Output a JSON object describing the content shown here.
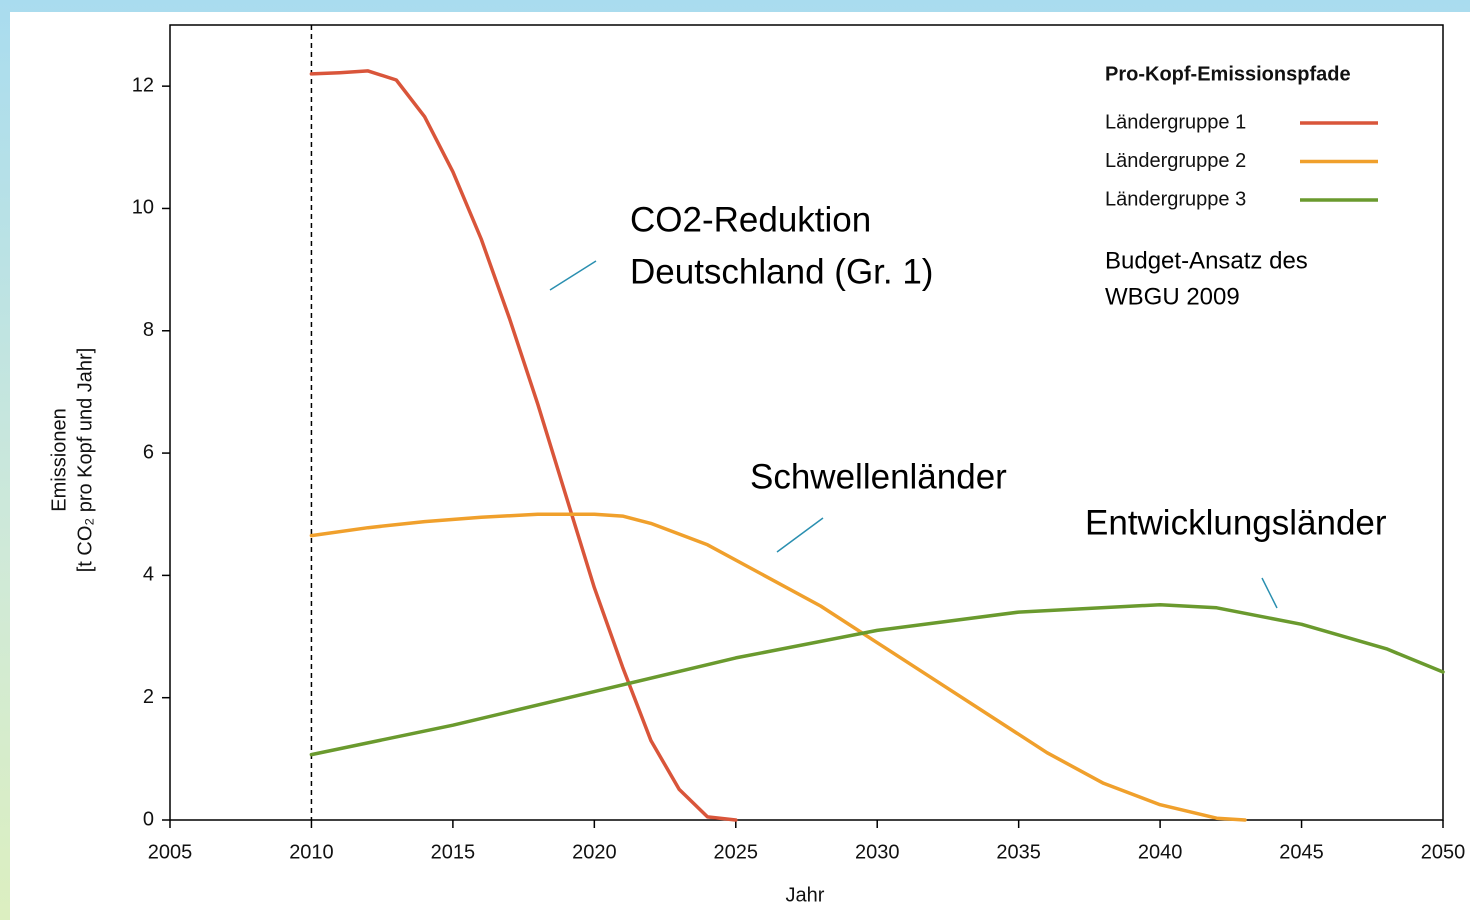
{
  "chart_data": {
    "type": "line",
    "x_label": "Jahr",
    "y_label": [
      "Emissionen",
      "[t CO₂ pro Kopf und Jahr]"
    ],
    "legend_title": "Pro-Kopf-Emissionspfade",
    "legend": "upper right",
    "xlim": [
      2005,
      2050
    ],
    "ylim": [
      0,
      13
    ],
    "xticks": [
      2005,
      2010,
      2015,
      2020,
      2025,
      2030,
      2035,
      2040,
      2045,
      2050
    ],
    "yticks": [
      0,
      2,
      4,
      6,
      8,
      10,
      12
    ],
    "vline_x": 2010,
    "series": [
      {
        "name": "Ländergruppe 1",
        "color": "#d9553a",
        "x": [
          2010,
          2011,
          2012,
          2013,
          2014,
          2015,
          2016,
          2017,
          2018,
          2019,
          2020,
          2021,
          2022,
          2023,
          2024,
          2025
        ],
        "values": [
          12.2,
          12.22,
          12.25,
          12.1,
          11.5,
          10.6,
          9.5,
          8.2,
          6.8,
          5.3,
          3.8,
          2.5,
          1.3,
          0.5,
          0.05,
          0
        ]
      },
      {
        "name": "Ländergruppe 2",
        "color": "#f0a02c",
        "x": [
          2010,
          2012,
          2014,
          2016,
          2018,
          2020,
          2021,
          2022,
          2024,
          2026,
          2028,
          2030,
          2032,
          2034,
          2036,
          2038,
          2040,
          2042,
          2043
        ],
        "values": [
          4.65,
          4.78,
          4.88,
          4.95,
          5.0,
          5.0,
          4.97,
          4.85,
          4.5,
          4.0,
          3.5,
          2.9,
          2.3,
          1.7,
          1.1,
          0.6,
          0.25,
          0.03,
          0
        ]
      },
      {
        "name": "Ländergruppe 3",
        "color": "#6a9a2e",
        "x": [
          2010,
          2015,
          2020,
          2025,
          2030,
          2035,
          2040,
          2042,
          2045,
          2048,
          2050
        ],
        "values": [
          1.07,
          1.55,
          2.1,
          2.65,
          3.1,
          3.4,
          3.52,
          3.47,
          3.2,
          2.8,
          2.42
        ]
      }
    ],
    "annotations": [
      "CO2-Reduktion",
      "Deutschland (Gr. 1)",
      "Schwellenländer",
      "Entwicklungsländer"
    ],
    "note": [
      "Budget-Ansatz des",
      "WBGU 2009"
    ]
  }
}
